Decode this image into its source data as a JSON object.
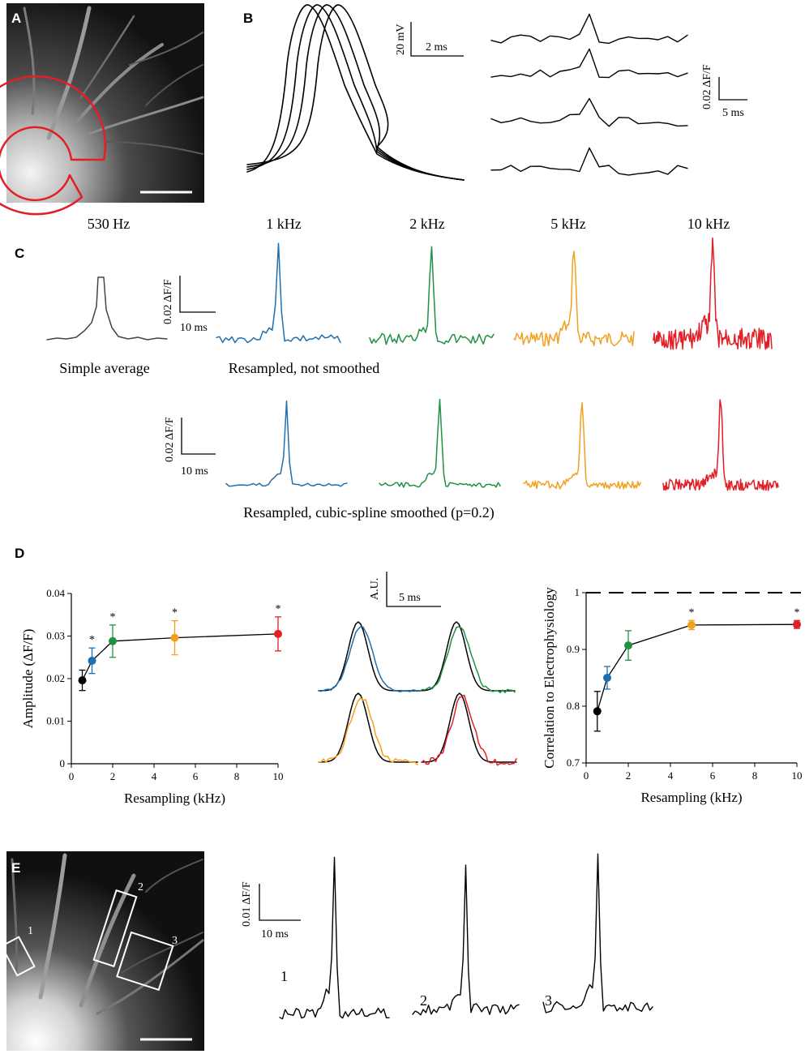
{
  "panels": {
    "a": {
      "letter": "A"
    },
    "b": {
      "letter": "B",
      "scale_v_label": "20 mV",
      "scale_h_label": "2 ms",
      "df_v_label": "0.02 ΔF/F",
      "df_h_label": "5 ms"
    },
    "c": {
      "letter": "C",
      "freqs": [
        "530 Hz",
        "1 kHz",
        "2 kHz",
        "5 kHz",
        "10 kHz"
      ],
      "scale_v_label": "0.02 ΔF/F",
      "scale_h_label": "10 ms",
      "simple_average_label": "Simple average",
      "row1_label": "Resampled, not smoothed",
      "row2_label": "Resampled, cubic-spline smoothed (p=0.2)"
    },
    "d": {
      "letter": "D",
      "au_label": "A.U.",
      "au_time_label": "5 ms"
    },
    "e": {
      "letter": "E",
      "scale_v_label": "0.01 ΔF/F",
      "scale_h_label": "10 ms",
      "roi_labels": [
        "1",
        "2",
        "3"
      ],
      "trace_labels": [
        "1",
        "2",
        "3"
      ]
    }
  },
  "colors": {
    "black": "#000000",
    "blue": "#1f6faf",
    "green": "#229144",
    "orange": "#f2a01e",
    "red": "#e21f26",
    "roi_outline": "#e31e24"
  },
  "chart_data": [
    {
      "type": "line",
      "title": "",
      "xlabel": "Resampling (kHz)",
      "ylabel": "Amplitude (ΔF/F)",
      "xlim": [
        0,
        10
      ],
      "ylim": [
        0,
        0.04
      ],
      "xticks": [
        "0",
        "2",
        "4",
        "6",
        "8",
        "10"
      ],
      "yticks": [
        "0",
        "0.01",
        "0.02",
        "0.03",
        "0.04"
      ],
      "x": [
        0.53,
        1,
        2,
        5,
        10
      ],
      "values": [
        0.0196,
        0.0242,
        0.0288,
        0.0296,
        0.0305
      ],
      "err": [
        0.0024,
        0.003,
        0.0038,
        0.004,
        0.004
      ],
      "significant": [
        false,
        true,
        true,
        true,
        true
      ],
      "sig_marker": "*",
      "point_colors": [
        "#000000",
        "#1f6faf",
        "#229144",
        "#f2a01e",
        "#e21f26"
      ]
    },
    {
      "type": "line",
      "title": "",
      "xlabel": "Resampling (kHz)",
      "ylabel": "Correlation to Electrophysiology",
      "xlim": [
        0,
        10
      ],
      "ylim": [
        0.7,
        1
      ],
      "xticks": [
        "0",
        "2",
        "4",
        "6",
        "8",
        "10"
      ],
      "yticks": [
        "0.7",
        "0.8",
        "0.9",
        "1"
      ],
      "x": [
        0.53,
        1,
        2,
        5,
        10
      ],
      "values": [
        0.791,
        0.85,
        0.907,
        0.943,
        0.944
      ],
      "err": [
        0.035,
        0.02,
        0.026,
        0.008,
        0.007
      ],
      "significant": [
        false,
        false,
        false,
        true,
        true
      ],
      "sig_marker": "*",
      "reference_line": 1,
      "point_colors": [
        "#000000",
        "#1f6faf",
        "#229144",
        "#f2a01e",
        "#e21f26"
      ]
    }
  ]
}
